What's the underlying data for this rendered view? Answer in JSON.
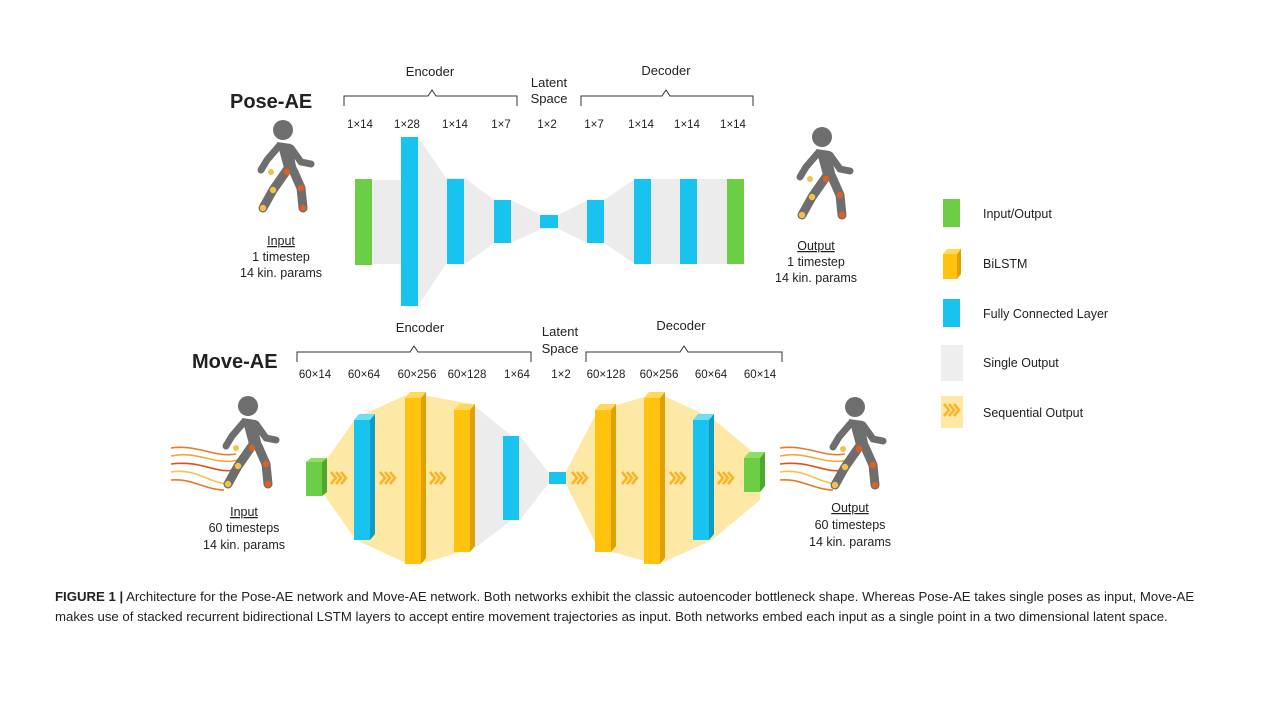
{
  "pose_ae": {
    "title": "Pose-AE",
    "encoder_label": "Encoder",
    "latent_label_1": "Latent",
    "latent_label_2": "Space",
    "decoder_label": "Decoder",
    "dims": [
      "1×14",
      "1×28",
      "1×14",
      "1×7",
      "1×2",
      "1×7",
      "1×14",
      "1×14",
      "1×14"
    ],
    "input": {
      "label": "Input",
      "line1": "1 timestep",
      "line2": "14 kin. params"
    },
    "output": {
      "label": "Output",
      "line1": "1 timestep",
      "line2": "14 kin. params"
    }
  },
  "move_ae": {
    "title": "Move-AE",
    "encoder_label": "Encoder",
    "latent_label_1": "Latent",
    "latent_label_2": "Space",
    "decoder_label": "Decoder",
    "dims": [
      "60×14",
      "60×64",
      "60×256",
      "60×128",
      "1×64",
      "1×2",
      "60×128",
      "60×256",
      "60×64",
      "60×14"
    ],
    "input": {
      "label": "Input",
      "line1": "60 timesteps",
      "line2": "14 kin. params"
    },
    "output": {
      "label": "Output",
      "line1": "60 timesteps",
      "line2": "14 kin. params"
    }
  },
  "legend": [
    {
      "label": "Input/Output",
      "color": "#6cce44",
      "icon": "green-block-icon"
    },
    {
      "label": "BiLSTM",
      "color": "#ffc20e",
      "icon": "yellow-3d-block-icon"
    },
    {
      "label": "Fully Connected Layer",
      "color": "#19c3f0",
      "icon": "cyan-block-icon"
    },
    {
      "label": "Single Output",
      "color": "#eeeeee",
      "icon": "grey-block-icon"
    },
    {
      "label": "Sequential Output",
      "color": "#fde8a6",
      "icon": "chevron-arrows-icon"
    }
  ],
  "caption": {
    "prefix": "FIGURE 1 |",
    "text": " Architecture for the Pose-AE network and Move-AE network. Both networks exhibit the classic autoencoder bottleneck shape. Whereas Pose-AE takes single poses as input, Move-AE makes use of stacked recurrent bidirectional LSTM layers to accept entire movement trajectories as input. Both networks embed each input as a single point in a two dimensional latent space."
  }
}
